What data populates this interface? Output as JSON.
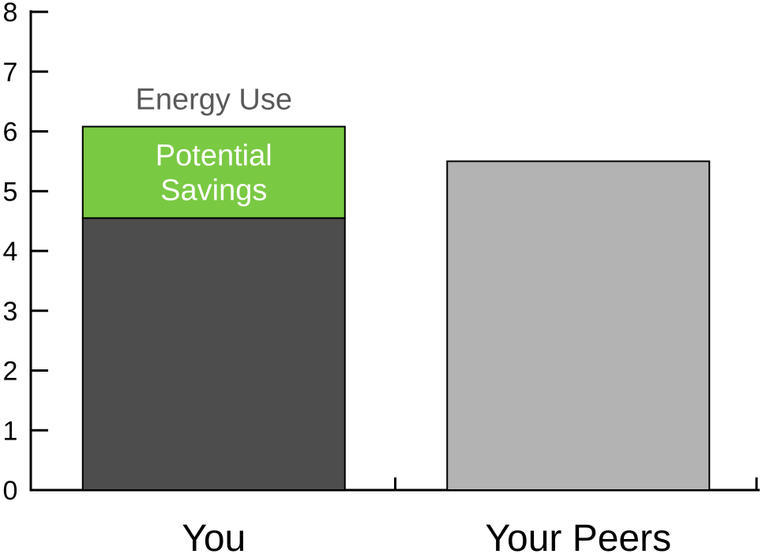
{
  "chart_data": {
    "type": "bar",
    "stacked": true,
    "title": "",
    "xlabel": "",
    "ylabel": "",
    "ylim": [
      0,
      8
    ],
    "yticks": [
      0,
      1,
      2,
      3,
      4,
      5,
      6,
      7,
      8
    ],
    "grid": false,
    "legend": "none",
    "categories": [
      "You",
      "Your Peers"
    ],
    "series": [
      {
        "values": [
          4.55,
          5.5
        ],
        "colors": [
          "#4d4d4d",
          "#b3b3b3"
        ]
      },
      {
        "values": [
          1.53,
          0
        ],
        "colors": [
          "#7ac943",
          "#7ac943"
        ]
      }
    ],
    "annotations": [
      {
        "category": "You",
        "text": "Energy Use",
        "position": "above-bar",
        "color": "#595959"
      },
      {
        "category": "You",
        "lines": [
          "Potential",
          "Savings"
        ],
        "position": "inside-segment-2",
        "color": "#ffffff"
      }
    ]
  }
}
